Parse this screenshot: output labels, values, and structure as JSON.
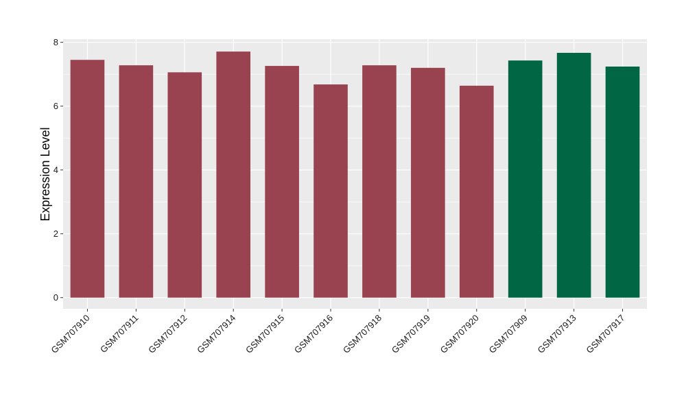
{
  "chart_data": {
    "type": "bar",
    "title": "",
    "xlabel": "",
    "ylabel": "Expression Level",
    "ylim": [
      -0.35,
      8.1
    ],
    "yticks": [
      0,
      2,
      4,
      6,
      8
    ],
    "grid": true,
    "categories": [
      "GSM707910",
      "GSM707911",
      "GSM707912",
      "GSM707914",
      "GSM707915",
      "GSM707916",
      "GSM707918",
      "GSM707919",
      "GSM707920",
      "GSM707909",
      "GSM707913",
      "GSM707917"
    ],
    "values": [
      7.45,
      7.28,
      7.06,
      7.71,
      7.26,
      6.68,
      7.28,
      7.2,
      6.64,
      7.43,
      7.67,
      7.24
    ],
    "bar_colors": [
      "#9a4350",
      "#9a4350",
      "#9a4350",
      "#9a4350",
      "#9a4350",
      "#9a4350",
      "#9a4350",
      "#9a4350",
      "#9a4350",
      "#006643",
      "#006643",
      "#006643"
    ],
    "panel_background": "#ebebeb",
    "gridline_color": "#ffffff"
  }
}
